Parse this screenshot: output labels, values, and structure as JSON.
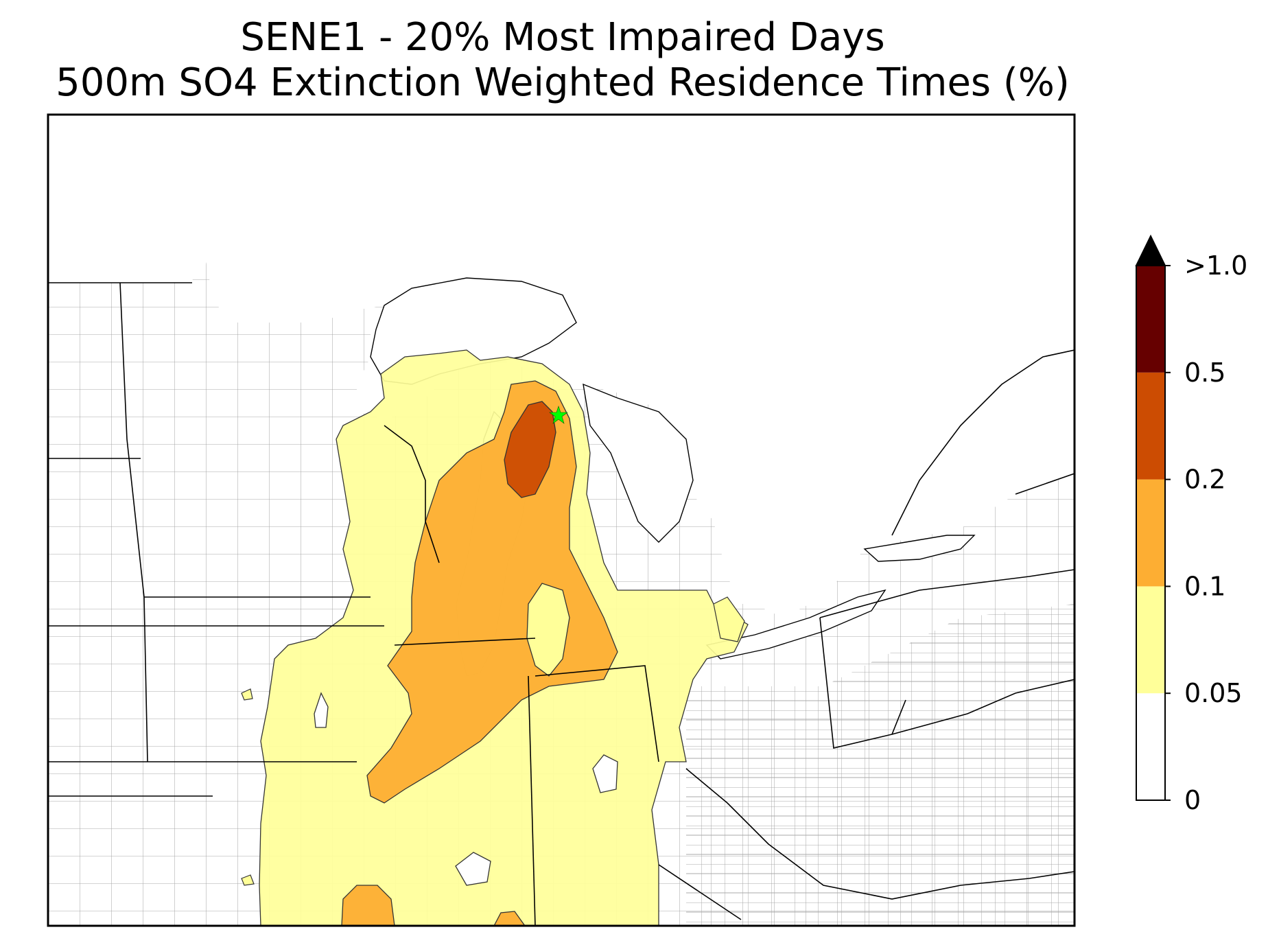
{
  "title": {
    "line1": "SENE1 - 20% Most Impaired Days",
    "line2": "500m SO4 Extinction Weighted Residence Times (%)"
  },
  "legend": {
    "levels": [
      {
        "label": "0",
        "color": "#ffffff"
      },
      {
        "label": "0.05",
        "color": "#ffff99"
      },
      {
        "label": "0.1",
        "color": "#fdae33"
      },
      {
        "label": "0.2",
        "color": "#cc4c02"
      },
      {
        "label": "0.5",
        "color": "#660000"
      },
      {
        "label": ">1.0",
        "color": "#000000"
      }
    ],
    "extend": "max"
  },
  "map": {
    "receptor_marker": {
      "color": "#00ff00",
      "icon": "star-icon"
    }
  }
}
